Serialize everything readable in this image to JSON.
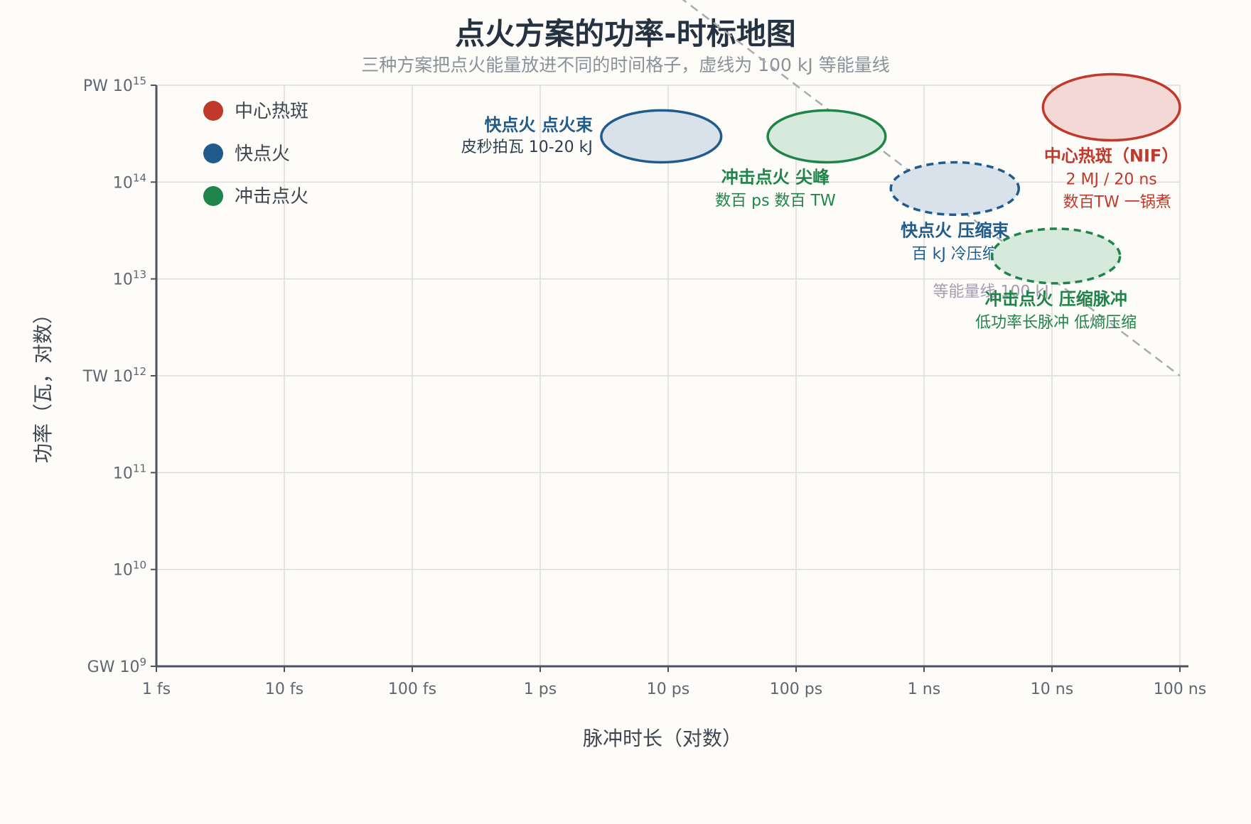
{
  "chart_data": {
    "type": "scatter",
    "title": "点火方案的功率-时标地图",
    "subtitle": "三种方案把点火能量放进不同的时间格子，虚线为 100 kJ 等能量线",
    "xlabel": "脉冲时长（对数）",
    "ylabel": "功率（瓦，对数）",
    "x_scale": "log",
    "y_scale": "log",
    "xlim": [
      1e-15,
      1e-07
    ],
    "ylim": [
      1000000000.0,
      1000000000000000.0
    ],
    "grid": true,
    "legend_position": "top-left",
    "x_ticks": [
      {
        "value": 1e-15,
        "label": "1 fs"
      },
      {
        "value": 1e-14,
        "label": "10 fs"
      },
      {
        "value": 1e-13,
        "label": "100 fs"
      },
      {
        "value": 1e-12,
        "label": "1 ps"
      },
      {
        "value": 1e-11,
        "label": "10 ps"
      },
      {
        "value": 1e-10,
        "label": "100 ps"
      },
      {
        "value": 1e-09,
        "label": "1 ns"
      },
      {
        "value": 1e-08,
        "label": "10 ns"
      },
      {
        "value": 1e-07,
        "label": "100 ns"
      }
    ],
    "y_ticks": [
      {
        "value": 1000000000.0,
        "prefix": "GW ",
        "base": "10",
        "exp": "9"
      },
      {
        "value": 10000000000.0,
        "prefix": "",
        "base": "10",
        "exp": "10"
      },
      {
        "value": 100000000000.0,
        "prefix": "",
        "base": "10",
        "exp": "11"
      },
      {
        "value": 1000000000000.0,
        "prefix": "TW ",
        "base": "10",
        "exp": "12"
      },
      {
        "value": 10000000000000.0,
        "prefix": "",
        "base": "10",
        "exp": "13"
      },
      {
        "value": 100000000000000.0,
        "prefix": "",
        "base": "10",
        "exp": "14"
      },
      {
        "value": 1000000000000000.0,
        "prefix": "PW ",
        "base": "10",
        "exp": "15"
      }
    ],
    "series": [
      {
        "name": "中心热斑",
        "color": "#c0392b"
      },
      {
        "name": "快点火",
        "color": "#1f5b8c"
      },
      {
        "name": "冲击点火",
        "color": "#1e8449"
      }
    ],
    "regions": [
      {
        "series": "快点火",
        "label": "快点火 点火束",
        "note": "皮秒拍瓦 10-20 kJ",
        "x_range": [
          3e-12,
          2.6e-11
        ],
        "y_range": [
          160000000000000.0,
          550000000000000.0
        ],
        "dashed": false,
        "fill": "#d9e2eb",
        "label_anchor": "left"
      },
      {
        "series": "冲击点火",
        "label": "冲击点火 尖峰",
        "note": "数百 ps 数百 TW",
        "x_range": [
          6e-11,
          5e-10
        ],
        "y_range": [
          160000000000000.0,
          550000000000000.0
        ],
        "dashed": false,
        "fill": "#d6eadb",
        "label_anchor": "below-left"
      },
      {
        "series": "中心热斑",
        "label": "中心热斑（NIF）",
        "note_lines": [
          "2 MJ / 20 ns",
          "数百TW 一锅煮"
        ],
        "x_range": [
          8.5e-09,
          1e-07
        ],
        "y_range": [
          270000000000000.0,
          1300000000000000.0
        ],
        "dashed": false,
        "fill": "#f3d8d6",
        "label_anchor": "below"
      },
      {
        "series": "快点火",
        "label": "快点火 压缩束",
        "note": "百 kJ 冷压缩",
        "x_range": [
          5.5e-10,
          5.5e-09
        ],
        "y_range": [
          46000000000000.0,
          160000000000000.0
        ],
        "dashed": true,
        "fill": "#d9e2eb",
        "label_anchor": "below"
      },
      {
        "series": "冲击点火",
        "label": "冲击点火 压缩脉冲",
        "note": "低功率长脉冲 低熵压缩",
        "x_range": [
          3.4e-09,
          3.4e-08
        ],
        "y_range": [
          9000000000000.0,
          33000000000000.0
        ],
        "dashed": true,
        "fill": "#d6eadb",
        "label_anchor": "below"
      }
    ],
    "reference_line": {
      "label": "等能量线 100 kJ",
      "energy_J": 100000,
      "x_range": [
        1e-11,
        1e-07
      ]
    }
  }
}
